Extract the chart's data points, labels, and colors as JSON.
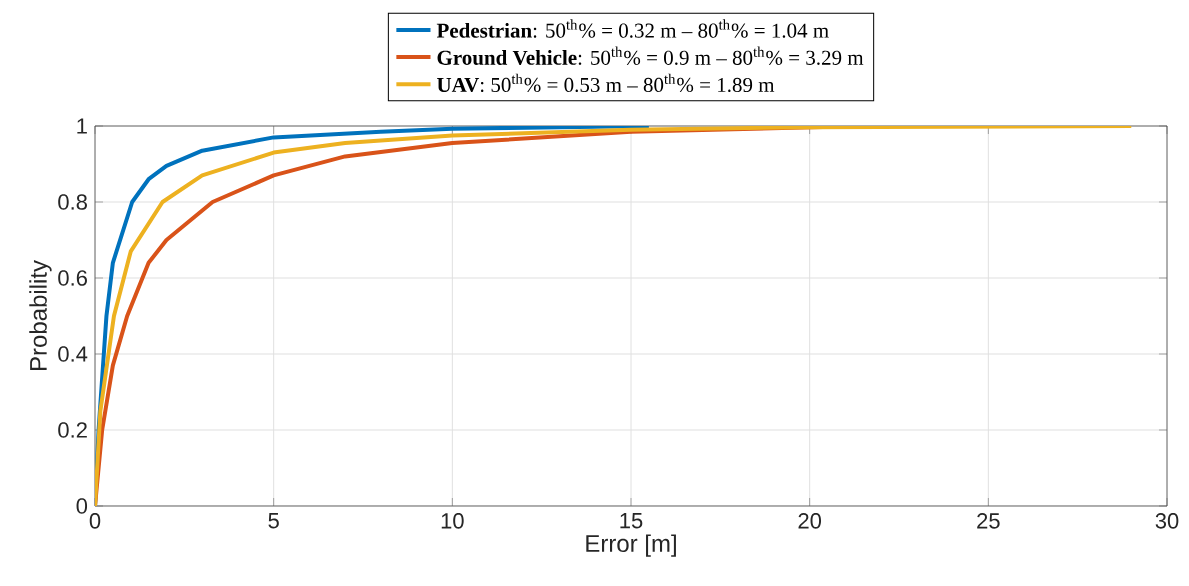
{
  "chart_data": {
    "type": "line",
    "xlabel": "Error [m]",
    "ylabel": "Probability",
    "xlim": [
      0,
      30
    ],
    "ylim": [
      0,
      1
    ],
    "xticks": [
      0,
      5,
      10,
      15,
      20,
      25,
      30
    ],
    "yticks": [
      0,
      0.2,
      0.4,
      0.6,
      0.8,
      1
    ],
    "grid": true,
    "legend": "top",
    "marker": "none",
    "line_style": "solid",
    "series": [
      {
        "name": "**Pedestrian**: 50$^{th}$% = 0.32 m – 80$^{th}$% = 1.04 m",
        "color": "#0072bd",
        "x": [
          0,
          0.1,
          0.32,
          0.5,
          1.04,
          1.5,
          2,
          3,
          5,
          8,
          10,
          15.5
        ],
        "values": [
          0,
          0.2,
          0.5,
          0.64,
          0.8,
          0.86,
          0.895,
          0.935,
          0.97,
          0.985,
          0.993,
          1.0
        ]
      },
      {
        "name": "**Ground Vehicle**: 50$^{th}$% = 0.9 m – 80$^{th}$% = 3.29 m",
        "color": "#d95319",
        "x": [
          0,
          0.2,
          0.5,
          0.9,
          1.5,
          2,
          3.29,
          5,
          7,
          10,
          15,
          21.5
        ],
        "values": [
          0,
          0.2,
          0.37,
          0.5,
          0.64,
          0.7,
          0.8,
          0.87,
          0.92,
          0.955,
          0.985,
          1.0
        ]
      },
      {
        "name": "**UAV**: 50$^{th}$% = 0.53 m – 80$^{th}$% = 1.89 m",
        "color": "#edb120",
        "x": [
          0,
          0.15,
          0.53,
          1,
          1.89,
          3,
          5,
          7,
          10,
          15,
          20,
          29
        ],
        "values": [
          0,
          0.25,
          0.5,
          0.67,
          0.8,
          0.87,
          0.93,
          0.955,
          0.975,
          0.99,
          0.997,
          1.0
        ]
      }
    ]
  }
}
